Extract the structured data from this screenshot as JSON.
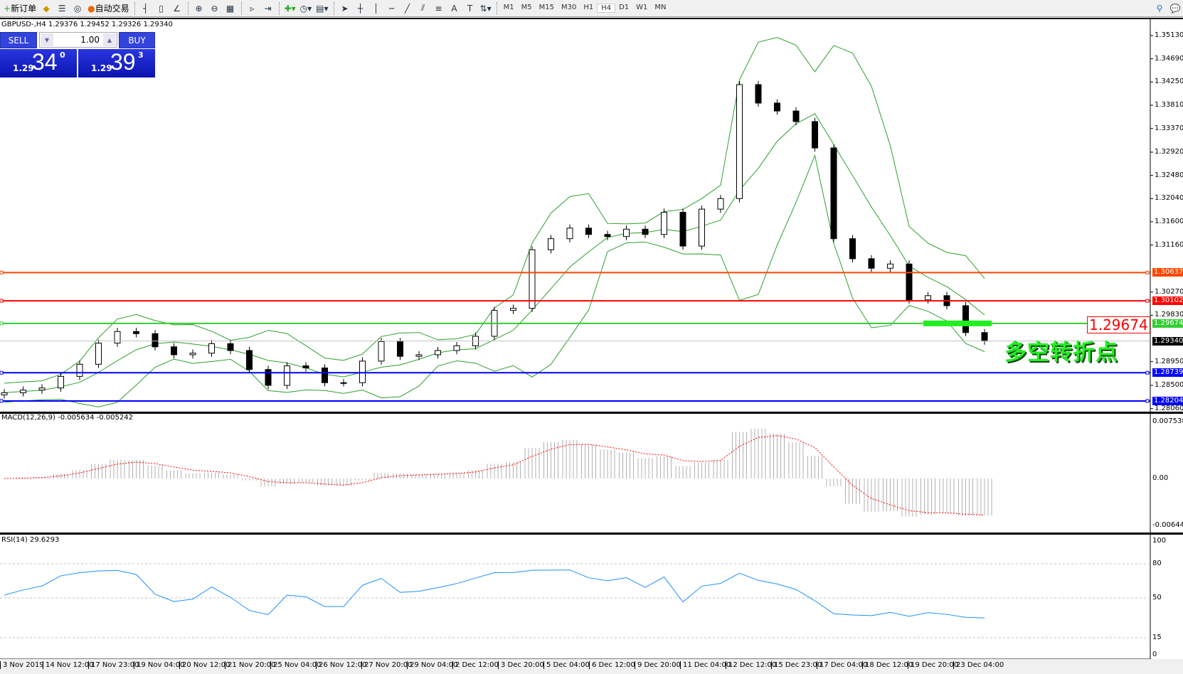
{
  "toolbar": {
    "new_order": "新订单",
    "auto_trading": "自动交易",
    "icons": [
      "new-order-icon",
      "market-watch-icon",
      "navigator-icon",
      "signals-icon",
      "auto-trading-icon",
      "bar-chart-icon",
      "candlestick-icon",
      "line-chart-icon",
      "zoom-in-icon",
      "zoom-out-icon",
      "tile-windows-icon",
      "autoscroll-icon",
      "chart-shift-icon",
      "indicators-icon",
      "periods-icon",
      "templates-icon",
      "cursor-icon",
      "crosshair-icon",
      "vertical-line-icon",
      "horizontal-line-icon",
      "trendline-icon",
      "equidistant-channel-icon",
      "fibonacci-icon",
      "text-icon",
      "text-label-icon",
      "arrows-icon"
    ],
    "timeframes": [
      "M1",
      "M5",
      "M15",
      "M30",
      "H1",
      "H4",
      "D1",
      "W1",
      "MN"
    ],
    "active_timeframe": "H4"
  },
  "chart": {
    "header": "GBPUSD-,H4  1.29376 1.29452 1.29326 1.29340",
    "sell_label": "SELL",
    "buy_label": "BUY",
    "lot": "1.00",
    "sell_price": {
      "small": "1.29",
      "big": "34",
      "sup": "0"
    },
    "buy_price": {
      "small": "1.29",
      "big": "39",
      "sup": "3"
    },
    "annotation_price": "1.29674",
    "annotation_text": "多空转折点",
    "macd_label": "MACD(12,26,9) -0.005634 -0.005242",
    "rsi_label": "RSI(14) 29.6293"
  },
  "chart_data": {
    "type": "candlestick",
    "symbol": "GBPUSD-",
    "timeframe": "H4",
    "price_ticks": [
      "1.35130",
      "1.34690",
      "1.34250",
      "1.33810",
      "1.33370",
      "1.32920",
      "1.32480",
      "1.32040",
      "1.31600",
      "1.31160",
      "1.30270",
      "1.29830",
      "1.28950",
      "1.28500",
      "1.28060"
    ],
    "ylim": [
      1.2806,
      1.3513
    ],
    "closes": [
      1.2836,
      1.2841,
      1.2845,
      1.2867,
      1.289,
      1.293,
      1.2952,
      1.2948,
      1.2923,
      1.2908,
      1.2911,
      1.2929,
      1.2916,
      1.288,
      1.285,
      1.2887,
      1.2883,
      1.2855,
      1.2855,
      1.2896,
      1.2933,
      1.2905,
      1.2908,
      1.2916,
      1.2925,
      1.2943,
      1.2992,
      1.2996,
      1.3107,
      1.3128,
      1.3148,
      1.3136,
      1.3132,
      1.3146,
      1.3136,
      1.3178,
      1.3114,
      1.3184,
      1.3204,
      1.342,
      1.3385,
      1.337,
      1.335,
      1.33,
      1.3128,
      1.309,
      1.3072,
      1.308,
      1.3012,
      1.302,
      1.3001,
      1.295,
      1.2934
    ],
    "hlines": [
      {
        "price": "1.30637",
        "color": "#ff4500"
      },
      {
        "price": "1.30102",
        "color": "#ff0000"
      },
      {
        "price": "1.29674",
        "color": "#32cd32"
      },
      {
        "price": "1.29340",
        "color": "#000000",
        "current": true
      },
      {
        "price": "1.28739",
        "color": "#0000ff"
      },
      {
        "price": "1.28204",
        "color": "#0000ff"
      }
    ],
    "macd_ticks": [
      "0.007538",
      "0.00",
      "-0.006446"
    ],
    "rsi_ticks": [
      "100",
      "80",
      "50",
      "15",
      "0"
    ],
    "time_labels": [
      "3 Nov 2019",
      "14 Nov 12:00",
      "17 Nov 23:00",
      "19 Nov 04:00",
      "20 Nov 12:00",
      "21 Nov 20:00",
      "25 Nov 04:00",
      "26 Nov 12:00",
      "27 Nov 20:00",
      "29 Nov 04:00",
      "2 Dec 12:00",
      "3 Dec 20:00",
      "5 Dec 04:00",
      "6 Dec 12:00",
      "9 Dec 20:00",
      "11 Dec 04:00",
      "12 Dec 12:00",
      "15 Dec 23:00",
      "17 Dec 04:00",
      "18 Dec 12:00",
      "19 Dec 20:00",
      "23 Dec 04:00"
    ],
    "colors": {
      "band": "#2ca02c",
      "macd_signal": "#ff0000",
      "macd_hist": "#b0b0b0",
      "rsi": "#1e90ff"
    }
  }
}
